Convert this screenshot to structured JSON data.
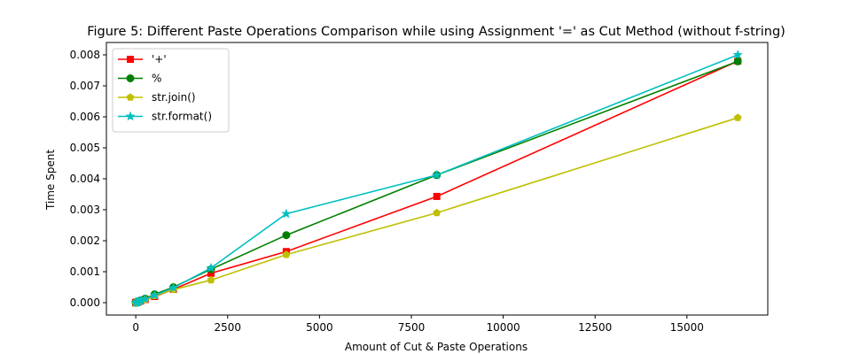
{
  "chart_data": {
    "type": "line",
    "title": "Figure 5: Different Paste Operations Comparison while using Assignment '=' as Cut Method (without f-string)",
    "xlabel": "Amount of Cut & Paste Operations",
    "ylabel": "Time Spent",
    "xlim": [
      -800,
      17200
    ],
    "ylim": [
      -0.0004,
      0.0084
    ],
    "xticks": [
      0,
      2500,
      5000,
      7500,
      10000,
      12500,
      15000
    ],
    "xtick_labels": [
      "0",
      "2500",
      "5000",
      "7500",
      "10000",
      "12500",
      "15000"
    ],
    "yticks": [
      0.0,
      0.001,
      0.002,
      0.003,
      0.004,
      0.005,
      0.006,
      0.007,
      0.008
    ],
    "ytick_labels": [
      "0.000",
      "0.001",
      "0.002",
      "0.003",
      "0.004",
      "0.005",
      "0.006",
      "0.007",
      "0.008"
    ],
    "legend_position": "top-left",
    "grid": false,
    "x": [
      1,
      2,
      4,
      8,
      16,
      32,
      64,
      128,
      256,
      512,
      1024,
      2048,
      4096,
      8192,
      16384
    ],
    "series": [
      {
        "name": "'+'",
        "color": "#ff0000",
        "marker": "square",
        "values": [
          1e-06,
          1e-06,
          2e-06,
          4e-06,
          7e-06,
          1.4e-05,
          2.8e-05,
          5e-05,
          0.0001,
          0.0002,
          0.00043,
          0.00095,
          0.00165,
          0.00343,
          0.0078
        ]
      },
      {
        "name": "%",
        "color": "#008000",
        "marker": "circle",
        "values": [
          1e-06,
          1e-06,
          2e-06,
          4e-06,
          8e-06,
          1.6e-05,
          3.2e-05,
          7e-05,
          0.00013,
          0.00027,
          0.0005,
          0.00108,
          0.00218,
          0.00412,
          0.00779
        ]
      },
      {
        "name": "str.join()",
        "color": "#bfbf00",
        "marker": "pentagon",
        "values": [
          1e-06,
          1e-06,
          2e-06,
          3e-06,
          6e-06,
          1.2e-05,
          2.4e-05,
          5e-05,
          0.0001,
          0.00022,
          0.00042,
          0.00073,
          0.00155,
          0.0029,
          0.00597
        ]
      },
      {
        "name": "str.format()",
        "color": "#00bfbf",
        "marker": "star",
        "values": [
          1e-06,
          1e-06,
          2e-06,
          4e-06,
          8e-06,
          1.5e-05,
          3e-05,
          6e-05,
          0.00012,
          0.00024,
          0.00048,
          0.00112,
          0.00287,
          0.00412,
          0.008
        ]
      }
    ]
  }
}
